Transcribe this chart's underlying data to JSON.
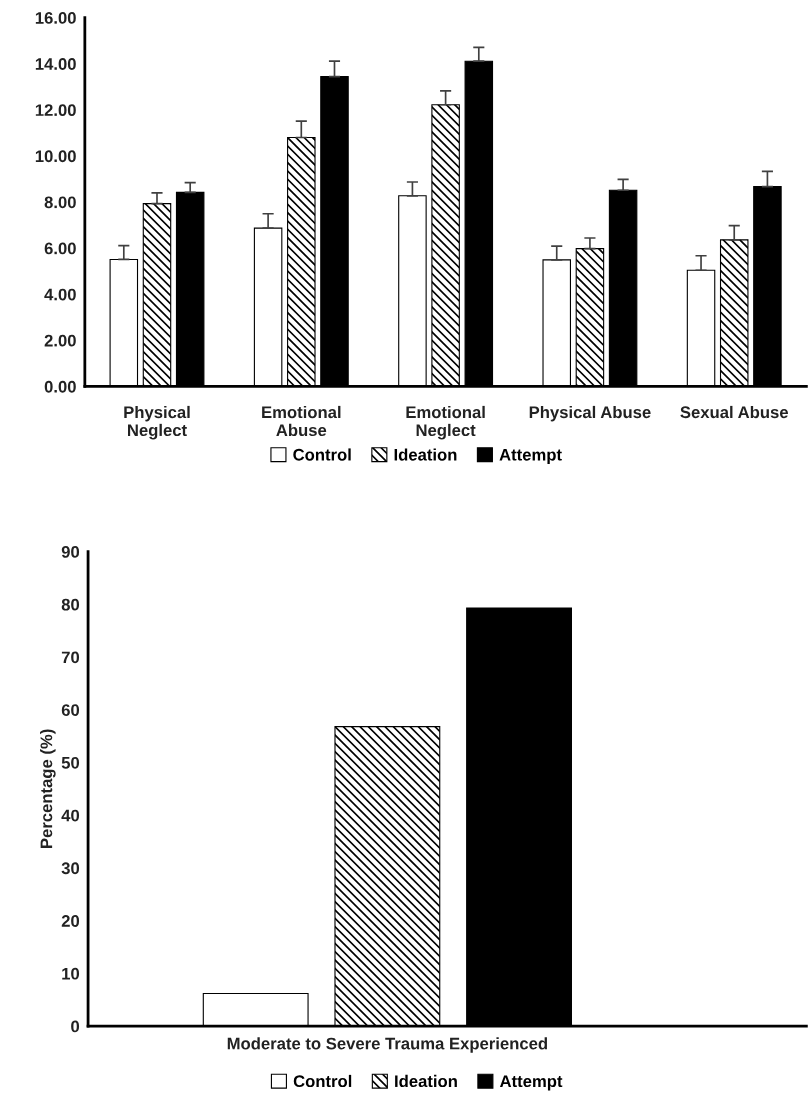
{
  "chart_data": [
    {
      "type": "bar",
      "categories": [
        "Physical\nNeglect",
        "Emotional\nAbuse",
        "Emotional\nNeglect",
        "Physical Abuse",
        "Sexual Abuse"
      ],
      "series": [
        {
          "name": "Control",
          "color": "#ffffff",
          "values": [
            5.51,
            6.87,
            8.27,
            5.49,
            5.04
          ],
          "errors": [
            [
              5.51,
              6.11
            ],
            [
              6.87,
              7.49
            ],
            [
              8.27,
              8.87
            ],
            [
              5.49,
              6.09
            ],
            [
              5.04,
              5.67
            ]
          ]
        },
        {
          "name": "Ideation",
          "color": "#000000",
          "values": [
            7.93,
            10.8,
            12.22,
            5.98,
            6.36
          ],
          "errors": [
            [
              7.93,
              8.4
            ],
            [
              10.8,
              11.51
            ],
            [
              12.22,
              12.82
            ],
            [
              5.98,
              6.44
            ],
            [
              6.36,
              6.98
            ]
          ]
        },
        {
          "name": "Attempt",
          "color": "#000000",
          "values": [
            8.42,
            13.44,
            14.11,
            8.51,
            8.67
          ],
          "errors": [
            [
              8.42,
              8.84
            ],
            [
              13.44,
              14.11
            ],
            [
              14.11,
              14.71
            ],
            [
              8.51,
              8.98
            ],
            [
              8.67,
              9.33
            ]
          ]
        }
      ],
      "ylim": [
        0,
        16
      ],
      "yticks": [
        {
          "value": 0,
          "label": "0.00"
        },
        {
          "value": 2,
          "label": "2.00"
        },
        {
          "value": 4,
          "label": "4.00"
        },
        {
          "value": 6,
          "label": "6.00"
        },
        {
          "value": 8,
          "label": "8.00"
        },
        {
          "value": 10,
          "label": "10.00"
        },
        {
          "value": 12,
          "label": "12.00"
        },
        {
          "value": 14,
          "label": "14.00"
        },
        {
          "value": 16,
          "label": "16.00"
        }
      ],
      "grid": false,
      "legend": "bottom"
    },
    {
      "type": "bar",
      "categories": [
        "Moderate to Severe Trauma Experienced"
      ],
      "ylabel": "Percentage (%)",
      "series": [
        {
          "name": "Control",
          "color": "#ffffff",
          "values": [
            6.2
          ]
        },
        {
          "name": "Ideation",
          "color": "#000000",
          "values": [
            56.8
          ]
        },
        {
          "name": "Attempt",
          "color": "#000000",
          "values": [
            79.3
          ]
        }
      ],
      "ylim": [
        0,
        90
      ],
      "yticks": [
        0,
        10,
        20,
        30,
        40,
        50,
        60,
        70,
        80,
        90
      ],
      "grid": false,
      "legend": "bottom"
    }
  ]
}
